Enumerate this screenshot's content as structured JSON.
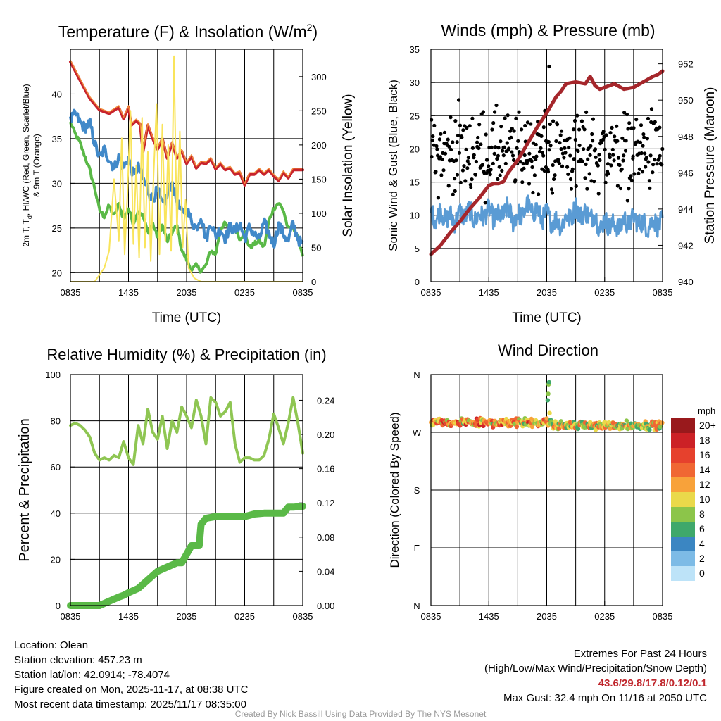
{
  "colors": {
    "red": "#c8232c",
    "orange": "#f08a3c",
    "green": "#5ab947",
    "blue": "#4189c9",
    "yellow": "#f9e45b",
    "black": "#000000",
    "maroon": "#a5262b",
    "wind_blue": "#5a9bd4",
    "rh_green": "#8fc653",
    "precip_green": "#5ab947"
  },
  "chart_data": [
    {
      "id": "temp",
      "type": "line",
      "title": "Temperature (F) & Insolation (W/m",
      "title_sup": "2",
      "title_end": ")",
      "xlabel": "Time (UTC)",
      "ylabel_lines": [
        "2m T, T",
        "d",
        ", HI/WC (Red, Green, Scarlet/Blue)",
        "& 9m T (Orange)"
      ],
      "y2label": "Solar Insolation (Yellow)",
      "x_ticks": [
        "0835",
        "1435",
        "2035",
        "0235",
        "0835"
      ],
      "xlim": [
        0,
        24
      ],
      "ylim": [
        19,
        45
      ],
      "y_ticks": [
        20,
        25,
        30,
        35,
        40
      ],
      "y2lim": [
        0,
        340
      ],
      "y2_ticks": [
        0,
        50,
        100,
        150,
        200,
        250,
        300
      ],
      "series": [
        {
          "name": "2m T",
          "color": "red",
          "width": 4,
          "x": [
            0,
            1,
            2,
            3,
            4,
            5,
            5.5,
            6,
            6.3,
            6.8,
            7.2,
            7.5,
            8,
            8.5,
            9,
            9.5,
            10,
            10.5,
            11,
            11.5,
            12,
            12.5,
            13,
            13.5,
            14,
            14.5,
            15,
            15.5,
            16,
            16.5,
            17,
            17.5,
            18,
            18.5,
            19,
            19.5,
            20,
            20.5,
            21,
            21.5,
            22,
            22.5,
            23,
            23.5,
            24
          ],
          "values": [
            43.6,
            41.5,
            39.5,
            38.2,
            37.8,
            38.5,
            37.2,
            38.5,
            36.5,
            37,
            36.6,
            33.5,
            36.5,
            35,
            33.8,
            35,
            32.8,
            34.5,
            32.8,
            33.6,
            32.2,
            33,
            31.7,
            32.3,
            32.2,
            32.7,
            31.6,
            32.2,
            31.5,
            31.7,
            31,
            31.2,
            29.8,
            31,
            31,
            31.5,
            31,
            31.5,
            30.8,
            30.3,
            31.2,
            30.6,
            31.5,
            31.5,
            31.5
          ]
        },
        {
          "name": "9m T",
          "color": "orange",
          "width": 1.5,
          "offset": 0.25,
          "x": [
            0,
            1,
            2,
            3,
            4,
            5,
            5.5,
            6,
            6.3,
            6.8,
            7.2,
            7.5,
            8,
            8.5,
            9,
            9.5,
            10,
            10.5,
            11,
            11.5,
            12,
            12.5,
            13,
            13.5,
            14,
            14.5,
            15,
            15.5,
            16,
            16.5,
            17,
            17.5,
            18,
            18.5,
            19,
            19.5,
            20,
            20.5,
            21,
            21.5,
            22,
            22.5,
            23,
            23.5,
            24
          ],
          "values": [
            43.6,
            41.5,
            39.5,
            38.2,
            37.8,
            38.5,
            37.2,
            38.5,
            36.5,
            37,
            36.6,
            33.5,
            36.5,
            35,
            33.8,
            35,
            32.8,
            34.5,
            32.8,
            33.6,
            32.2,
            33,
            31.7,
            32.3,
            32.2,
            32.7,
            31.6,
            32.2,
            31.5,
            31.7,
            31,
            31.2,
            29.8,
            31,
            31,
            31.5,
            31,
            31.5,
            30.8,
            30.3,
            31.2,
            30.6,
            31.5,
            31.5,
            31.5
          ]
        },
        {
          "name": "Td",
          "color": "green",
          "width": 4,
          "x": [
            0,
            0.5,
            1,
            1.5,
            2,
            2.5,
            3,
            3.5,
            4,
            4.5,
            5,
            5.5,
            6,
            6.5,
            7,
            7.5,
            8,
            8.5,
            9,
            9.5,
            10,
            10.5,
            11,
            11.5,
            12,
            12.5,
            13,
            13.5,
            14,
            14.5,
            15,
            15.5,
            16,
            16.5,
            17,
            17.5,
            18,
            18.5,
            19,
            19.5,
            20,
            20.5,
            21,
            21.5,
            22,
            22.5,
            23,
            23.5,
            24
          ],
          "values": [
            36.8,
            35.5,
            34.5,
            33,
            31.5,
            29.5,
            27,
            26.3,
            27.5,
            26.3,
            27.7,
            26,
            27.2,
            25.5,
            27,
            26.3,
            24.5,
            25.5,
            24,
            25.3,
            23.5,
            24.5,
            25.3,
            22.5,
            21.5,
            20.3,
            20.8,
            20.2,
            20.8,
            22.5,
            22,
            25,
            25.5,
            24.8,
            25,
            23.8,
            24.5,
            22.8,
            23.2,
            23.6,
            22.8,
            25.8,
            27.2,
            27.8,
            27,
            24.8,
            25.3,
            23.8,
            22
          ]
        },
        {
          "name": "HI/WC",
          "color": "blue",
          "width": 4,
          "x": [
            0,
            0.5,
            1,
            1.5,
            2,
            2.5,
            3,
            3.5,
            4,
            4.5,
            5,
            5.5,
            6,
            6.5,
            7,
            7.5,
            8,
            8.5,
            9,
            9.5,
            10,
            10.5,
            11,
            11.5,
            12,
            12.5,
            13,
            13.5,
            14,
            14.5,
            15,
            15.5,
            16,
            16.5,
            17,
            17.5,
            18,
            18.5,
            19,
            19.5,
            20,
            20.5,
            21,
            21.5,
            22,
            22.5,
            23,
            23.5,
            24
          ],
          "values": [
            37,
            37.8,
            36.8,
            36.2,
            36.8,
            34.5,
            32.8,
            33.8,
            32.7,
            31.7,
            32.9,
            31.8,
            32.8,
            31,
            31.8,
            30.5,
            29.2,
            28.2,
            29.3,
            27.5,
            28.6,
            30,
            28,
            26.6,
            27.2,
            25.8,
            25,
            26.4,
            23.6,
            25.7,
            24.1,
            24.9,
            23.8,
            25.2,
            24.6,
            25.5,
            23.8,
            25.1,
            24.3,
            23.7,
            25.6,
            24.4,
            23.2,
            25.3,
            24.4,
            23.5,
            25.5,
            23.8,
            23
          ]
        },
        {
          "name": "Solar Insolation",
          "color": "yellow",
          "width": 2,
          "axis": "y2",
          "x": [
            0,
            2.5,
            3,
            3.5,
            4,
            4.5,
            5,
            5.3,
            5.6,
            5.9,
            6.2,
            6.5,
            6.8,
            7.1,
            7.4,
            7.7,
            8,
            8.3,
            8.6,
            8.9,
            9.2,
            9.5,
            9.8,
            10.1,
            10.4,
            10.7,
            11,
            11.3,
            11.6,
            11.9,
            12.2,
            12.8,
            13.5,
            24
          ],
          "values": [
            0,
            0,
            10,
            20,
            45,
            150,
            60,
            210,
            40,
            130,
            250,
            55,
            170,
            35,
            240,
            50,
            190,
            30,
            160,
            260,
            40,
            230,
            60,
            200,
            45,
            330,
            70,
            220,
            50,
            120,
            20,
            5,
            0,
            0
          ]
        }
      ]
    },
    {
      "id": "wind",
      "type": "scatter",
      "title": "Winds (mph) & Pressure (mb)",
      "xlabel": "Time (UTC)",
      "ylabel": "Sonic Wind & Gust (Blue, Black)",
      "y2label": "Station Pressure (Maroon)",
      "x_ticks": [
        "0835",
        "1435",
        "2035",
        "0235",
        "0835"
      ],
      "xlim": [
        0,
        24
      ],
      "ylim": [
        0,
        35
      ],
      "y_ticks": [
        0,
        5,
        10,
        15,
        20,
        25,
        30,
        35
      ],
      "y2lim": [
        940,
        952.8
      ],
      "y2_ticks": [
        940,
        942,
        944,
        946,
        948,
        950,
        952
      ],
      "wind": {
        "color": "wind_blue",
        "x": [
          0,
          0.5,
          1,
          1.5,
          2,
          2.5,
          3,
          3.5,
          4,
          4.5,
          5,
          5.5,
          6,
          6.5,
          7,
          7.5,
          8,
          8.5,
          9,
          9.5,
          10,
          10.5,
          11,
          11.5,
          12,
          12.5,
          13,
          13.5,
          14,
          14.5,
          15,
          15.5,
          16,
          16.5,
          17,
          17.5,
          18,
          18.5,
          19,
          19.5,
          20,
          20.5,
          21,
          21.5,
          22,
          22.5,
          23,
          23.5,
          24
        ],
        "values": [
          10.5,
          9.3,
          10.8,
          9.1,
          10.2,
          8.8,
          10.6,
          9.5,
          11,
          9,
          10.3,
          9.6,
          11.2,
          9.4,
          10.1,
          9.8,
          11.5,
          8.9,
          10.4,
          9.7,
          11.8,
          10,
          11.2,
          9.2,
          10.5,
          8.8,
          9.5,
          8.2,
          10,
          9.3,
          11.4,
          9.8,
          10.6,
          9.4,
          10.2,
          7.6,
          9.5,
          8.1,
          8.9,
          7.8,
          9.6,
          8.3,
          9.9,
          8.6,
          9.1,
          7.9,
          9.6,
          8.2,
          9.3
        ]
      },
      "gust": {
        "color": "black",
        "count": 360,
        "mean": 19.5,
        "spread": 6,
        "min": 10,
        "max": 32.4
      },
      "pressure": {
        "color": "maroon",
        "width": 5,
        "x": [
          0,
          1,
          2,
          3,
          4,
          5,
          6,
          6.5,
          7,
          7.5,
          8,
          9,
          10,
          11,
          12,
          13,
          13.5,
          14,
          15,
          16,
          16.5,
          17,
          17.5,
          18,
          18.5,
          19,
          20,
          21,
          22,
          23,
          23.5,
          24
        ],
        "values": [
          941.5,
          942,
          942.7,
          943.3,
          944,
          944.6,
          945.3,
          945.4,
          945.4,
          945.5,
          946,
          946.7,
          947.6,
          948.5,
          949.3,
          950.2,
          950.5,
          950.9,
          951,
          950.9,
          951.3,
          950.8,
          950.6,
          950.7,
          950.8,
          950.9,
          950.6,
          950.7,
          951,
          951.3,
          951.4,
          951.6
        ]
      }
    },
    {
      "id": "rh",
      "type": "line",
      "title": "Relative Humidity (%) & Precipitation (in)",
      "xlabel": "",
      "ylabel": "Percent & Precipitation",
      "x_ticks": [
        "0835",
        "1435",
        "2035",
        "0235",
        "0835"
      ],
      "xlim": [
        0,
        24
      ],
      "ylim": [
        0,
        100
      ],
      "y_ticks": [
        0,
        20,
        40,
        60,
        80,
        100
      ],
      "y2lim": [
        0,
        0.27
      ],
      "y2_ticks": [
        "0.00",
        "0.04",
        "0.08",
        "0.12",
        "0.16",
        "0.20",
        "0.24"
      ],
      "rh": {
        "color": "rh_green",
        "width": 4,
        "x": [
          0,
          0.5,
          1,
          1.5,
          2,
          2.5,
          3,
          3.5,
          4,
          4.5,
          5,
          5.5,
          6,
          6.5,
          7,
          7.5,
          8,
          8.5,
          9,
          9.5,
          10,
          10.5,
          11,
          11.5,
          12,
          12.5,
          13,
          13.5,
          14,
          14.5,
          15,
          15.5,
          16,
          16.5,
          17,
          17.5,
          18,
          18.5,
          19,
          19.5,
          20,
          20.5,
          21,
          21.5,
          22,
          22.5,
          23,
          23.5,
          24
        ],
        "values": [
          78,
          79,
          78,
          76,
          73,
          66,
          63,
          64,
          63,
          65,
          64,
          71,
          64,
          61,
          78,
          70,
          85,
          75,
          72,
          82,
          68,
          80,
          75,
          86,
          82,
          77,
          89,
          82,
          70,
          90,
          88,
          82,
          84,
          88,
          70,
          62,
          64,
          64,
          63,
          63,
          65,
          72,
          83,
          77,
          70,
          79,
          90,
          79,
          66
        ]
      },
      "precip": {
        "color": "precip_green",
        "width": 10,
        "x": [
          0,
          1,
          2,
          3,
          4,
          5,
          5.5,
          6,
          7,
          8,
          9,
          10,
          11,
          11.5,
          12.5,
          12.6,
          13.3,
          13.5,
          14,
          15,
          16,
          16.5,
          17,
          18,
          19,
          20,
          21,
          22,
          22.5,
          23,
          24
        ],
        "values": [
          0,
          0,
          0,
          0,
          0.005,
          0.01,
          0.012,
          0.015,
          0.02,
          0.03,
          0.04,
          0.045,
          0.05,
          0.05,
          0.07,
          0.07,
          0.07,
          0.095,
          0.102,
          0.104,
          0.104,
          0.104,
          0.104,
          0.104,
          0.107,
          0.108,
          0.108,
          0.108,
          0.115,
          0.115,
          0.116
        ]
      }
    },
    {
      "id": "dir",
      "type": "scatter",
      "title": "Wind Direction",
      "ylabel": "Direction (Colored By Speed)",
      "x_ticks": [
        "0835",
        "1435",
        "2035",
        "0235",
        "0835"
      ],
      "xlim": [
        0,
        24
      ],
      "ylim": [
        0,
        360
      ],
      "y_ticks": [
        "N",
        "E",
        "S",
        "W",
        "N"
      ],
      "points": {
        "count": 360,
        "mean_deg": 283,
        "spread_deg": 6
      },
      "legend": {
        "title": "mph",
        "labels": [
          "20+",
          "18",
          "16",
          "14",
          "12",
          "10",
          "8",
          "6",
          "4",
          "2",
          "0"
        ],
        "colors": [
          "#99191c",
          "#cc2126",
          "#e6412d",
          "#f06733",
          "#f8a23a",
          "#ead94a",
          "#8cc54a",
          "#3fa86b",
          "#3b86c2",
          "#7dbbe6",
          "#bde3f8"
        ]
      }
    }
  ],
  "info": {
    "location": "Location: Olean",
    "elevation": "Station elevation: 457.23 m",
    "latlon": "Station lat/lon: 42.0914; -78.4074",
    "created": "Figure created on Mon, 2025-11-17, at 08:38 UTC",
    "recent": "Most recent data timestamp: 2025/11/17 08:35:00"
  },
  "extremes": {
    "title": "Extremes For Past 24 Hours",
    "subtitle": "(High/Low/Max Wind/Precipitation/Snow Depth)",
    "values": "43.6/29.8/17.8/0.12/0.1",
    "max_gust": "Max Gust: 32.4 mph On 11/16 at 2050 UTC"
  },
  "credit": "Created By Nick Bassill Using Data Provided By The NYS Mesonet"
}
